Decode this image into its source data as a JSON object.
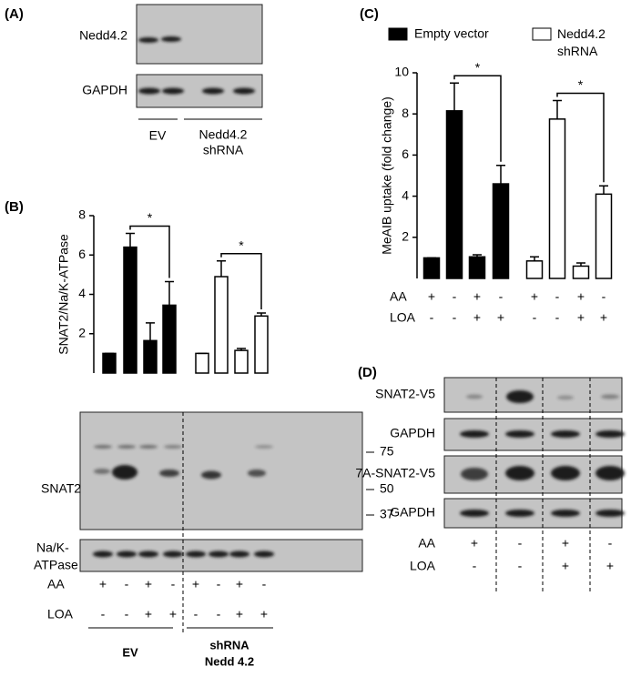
{
  "panel_a": {
    "label": "(A)",
    "blots": [
      "Nedd4.2",
      "GAPDH"
    ],
    "groups": [
      [
        "EV"
      ],
      [
        "Nedd4.2",
        "shRNA"
      ]
    ]
  },
  "panel_b": {
    "label": "(B)",
    "blots": [
      [
        "SNAT2"
      ],
      [
        "Na/K-",
        "ATPase"
      ]
    ],
    "markers": [
      75,
      50,
      37
    ],
    "conditions": [
      {
        "name": "AA",
        "signs": [
          "+",
          "-",
          "+",
          "-",
          "+",
          "-",
          "+",
          "-"
        ]
      },
      {
        "name": "LOA",
        "signs": [
          "-",
          "-",
          "+",
          "+",
          "-",
          "-",
          "+",
          "+"
        ]
      }
    ],
    "groups": [
      [
        "EV"
      ],
      [
        "shRNA",
        "Nedd 4.2"
      ]
    ]
  },
  "panel_d": {
    "label": "(D)",
    "blots": [
      "SNAT2-V5",
      "GAPDH",
      "7A-SNAT2-V5",
      "GAPDH"
    ],
    "conditions": [
      {
        "name": "AA",
        "signs": [
          "+",
          "-",
          "+",
          "-"
        ]
      },
      {
        "name": "LOA",
        "signs": [
          "-",
          "-",
          "+",
          "+"
        ]
      }
    ]
  },
  "chart_data": [
    {
      "type": "bar",
      "y_label": "SNAT2/Na/K-ATPase",
      "values": [
        1,
        6.4,
        1.65,
        3.45,
        1,
        4.9,
        1.15,
        2.9
      ],
      "errors": [
        0,
        0.7,
        0.9,
        1.2,
        0,
        0.8,
        0.1,
        0.15
      ],
      "colors": [
        "#000000",
        "#000000",
        "#000000",
        "#000000",
        "#ffffff",
        "#ffffff",
        "#ffffff",
        "#ffffff"
      ],
      "ylim": [
        0,
        8
      ],
      "yticks": [
        2,
        4,
        6,
        8
      ],
      "comparisons": [
        {
          "from": 1,
          "to": 3,
          "label": "*"
        },
        {
          "from": 5,
          "to": 7,
          "label": "*"
        }
      ]
    },
    {
      "type": "bar",
      "panel_label": "(C)",
      "y_label": "MeAIB uptake (fold change)",
      "series": [
        {
          "name": "Empty vector",
          "color": "#000000",
          "values": [
            1,
            8.15,
            1.05,
            4.6
          ],
          "errors": [
            0,
            1.35,
            0.1,
            0.9
          ]
        },
        {
          "name": "Nedd4.2 shRNA",
          "color": "#ffffff",
          "values": [
            0.85,
            7.75,
            0.6,
            4.1
          ],
          "errors": [
            0.2,
            0.9,
            0.15,
            0.4
          ]
        }
      ],
      "ylim": [
        0,
        10
      ],
      "yticks": [
        2,
        4,
        6,
        8,
        10
      ],
      "conditions": [
        {
          "name": "AA",
          "signs": [
            "+",
            "-",
            "+",
            "-",
            "+",
            "-",
            "+",
            "-"
          ]
        },
        {
          "name": "LOA",
          "signs": [
            "-",
            "-",
            "+",
            "+",
            "-",
            "-",
            "+",
            "+"
          ]
        }
      ],
      "comparisons": [
        {
          "from": 1,
          "to": 3,
          "label": "*"
        },
        {
          "from": 5,
          "to": 7,
          "label": "*"
        }
      ]
    }
  ]
}
